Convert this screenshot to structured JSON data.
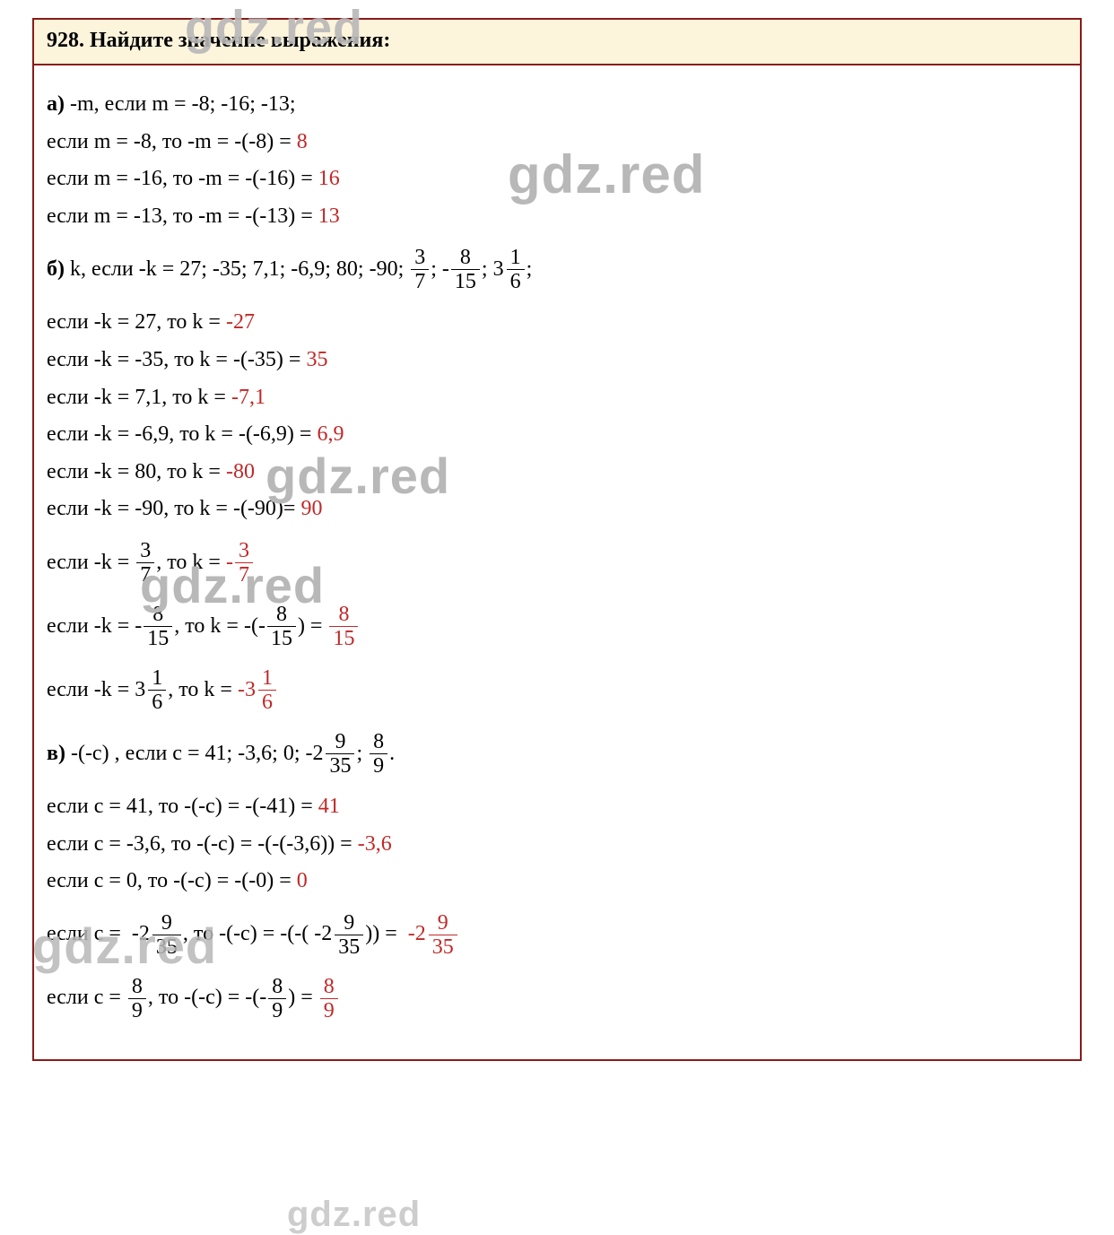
{
  "colors": {
    "border": "#8a1a1a",
    "header_bg": "#fdf4dc",
    "text": "#000000",
    "answer": "#c22727",
    "watermark": "#b8b8b8",
    "background": "#ffffff"
  },
  "typography": {
    "font_family": "Times New Roman",
    "base_fontsize_pt": 18,
    "watermark_font_family": "Arial"
  },
  "watermark_text": "gdz.red",
  "header": {
    "task_number": "928.",
    "task_title": "Найдите значение выражения:"
  },
  "part_a": {
    "label": "а)",
    "prompt_text": " -m, если m = -8; -16; -13;",
    "rows": [
      {
        "lhs": "если m = -8, то -m = -(-8) = ",
        "ans": "8"
      },
      {
        "lhs": "если m = -16, то -m = -(-16) = ",
        "ans": "16"
      },
      {
        "lhs": "если m = -13, то -m = -(-13) = ",
        "ans": "13"
      }
    ]
  },
  "part_b": {
    "label": "б)",
    "prompt_prefix": " k, если -k = 27; -35; 7,1; -6,9; 80; -90; ",
    "frac1": {
      "num": "3",
      "den": "7"
    },
    "sep1": "; -",
    "frac2": {
      "num": "8",
      "den": "15"
    },
    "sep2": "; ",
    "mixed1": {
      "whole": "3",
      "num": "1",
      "den": "6"
    },
    "prompt_suffix": ";",
    "rows_simple": [
      {
        "lhs": "если -k = 27, то k = ",
        "ans": "-27"
      },
      {
        "lhs": "если -k = -35, то k = -(-35) = ",
        "ans": "35"
      },
      {
        "lhs": "если -k = 7,1, то k = ",
        "ans": "-7,1"
      },
      {
        "lhs": "если -k = -6,9, то k = -(-6,9) = ",
        "ans": "6,9"
      },
      {
        "lhs": "если -k = 80, то k = ",
        "ans": "-80"
      },
      {
        "lhs": "если -k = -90, то k = -(-90)= ",
        "ans": "90"
      }
    ],
    "row_f1": {
      "pre": "если -k = ",
      "f": {
        "num": "3",
        "den": "7"
      },
      "mid": ", то k = ",
      "ans_sign": "-",
      "ans_frac": {
        "num": "3",
        "den": "7"
      }
    },
    "row_f2": {
      "pre": "если -k = -",
      "f": {
        "num": "8",
        "den": "15"
      },
      "mid": ", то k = -(-",
      "f2": {
        "num": "8",
        "den": "15"
      },
      "close": ") = ",
      "ans_frac": {
        "num": "8",
        "den": "15"
      }
    },
    "row_f3": {
      "pre": "если -k = ",
      "mixed": {
        "whole": "3",
        "num": "1",
        "den": "6"
      },
      "mid": ", то k = ",
      "ans_sign": "-",
      "ans_mixed": {
        "whole": "3",
        "num": "1",
        "den": "6"
      }
    }
  },
  "part_c": {
    "label": "в)",
    "prompt_prefix": " -(-c) , если c = 41; -3,6; 0; -",
    "mixed1": {
      "whole": "2",
      "num": "9",
      "den": "35"
    },
    "sep1": "; ",
    "frac1": {
      "num": "8",
      "den": "9"
    },
    "prompt_suffix": ".",
    "rows_simple": [
      {
        "lhs": "если c = 41, то -(-c) = -(-41) = ",
        "ans": "41"
      },
      {
        "lhs": "если c = -3,6, то -(-c) = -(-(-3,6)) = ",
        "ans": "-3,6"
      },
      {
        "lhs": "если c = 0, то -(-c) = -(-0) = ",
        "ans": "0"
      }
    ],
    "row_mixed": {
      "pre": "если c =  -",
      "m1": {
        "whole": "2",
        "num": "9",
        "den": "35"
      },
      "mid1": ", то -(-c) = -(-( -",
      "m2": {
        "whole": "2",
        "num": "9",
        "den": "35"
      },
      "mid2": ")) =  ",
      "ans_sign": "-",
      "ans_mixed": {
        "whole": "2",
        "num": "9",
        "den": "35"
      }
    },
    "row_frac": {
      "pre": "если c = ",
      "f1": {
        "num": "8",
        "den": "9"
      },
      "mid1": ", то -(-c) = -(-",
      "f2": {
        "num": "8",
        "den": "9"
      },
      "mid2": ") = ",
      "ans_frac": {
        "num": "8",
        "den": "9"
      }
    }
  }
}
